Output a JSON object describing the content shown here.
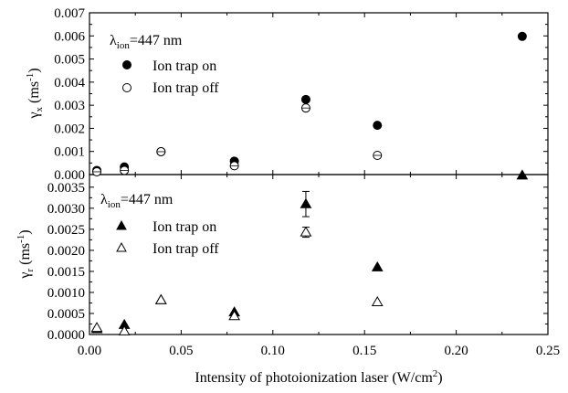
{
  "chart_data": [
    {
      "type": "scatter",
      "panel": "top",
      "ylabel": "γx (ms-1)",
      "ylabel_main": "γ",
      "ylabel_sub": "x",
      "ylabel_unit": " (ms",
      "ylabel_sup": "-1",
      "ylabel_close": ")",
      "ylim": [
        0,
        0.007
      ],
      "yticks": [
        0,
        0.001,
        0.002,
        0.003,
        0.004,
        0.005,
        0.006,
        0.007
      ],
      "ytick_labels": [
        "0.000",
        "0.001",
        "0.002",
        "0.003",
        "0.004",
        "0.005",
        "0.006",
        "0.007"
      ],
      "annotation": "λion=447 nm",
      "annotation_main": "λ",
      "annotation_sub": "ion",
      "annotation_rest": "=447 nm",
      "legend_position": "top-left",
      "series": [
        {
          "name": "Ion trap on",
          "marker": "filled-circle",
          "x": [
            0.004,
            0.019,
            0.039,
            0.079,
            0.118,
            0.157,
            0.236
          ],
          "y": [
            0.00018,
            0.00033,
            0.00099,
            0.00058,
            0.00325,
            0.00213,
            0.00598
          ]
        },
        {
          "name": "Ion trap off",
          "marker": "open-circle",
          "x": [
            0.004,
            0.019,
            0.039,
            0.079,
            0.118,
            0.157
          ],
          "y": [
            0.00012,
            0.00018,
            0.00099,
            0.00038,
            0.00288,
            0.00083
          ]
        }
      ]
    },
    {
      "type": "scatter",
      "panel": "bottom",
      "ylabel": "γr (ms-1)",
      "ylabel_main": "γ",
      "ylabel_sub": "r",
      "ylabel_unit": " (ms",
      "ylabel_sup": "-1",
      "ylabel_close": ")",
      "ylim": [
        0,
        0.0038
      ],
      "yticks": [
        0,
        0.0005,
        0.001,
        0.0015,
        0.002,
        0.0025,
        0.003,
        0.0035
      ],
      "ytick_labels": [
        "0.0000",
        "0.0005",
        "0.0010",
        "0.0015",
        "0.0020",
        "0.0025",
        "0.0030",
        "0.0035"
      ],
      "annotation": "λion=447 nm",
      "annotation_main": "λ",
      "annotation_sub": "ion",
      "annotation_rest": "=447 nm",
      "legend_position": "top-left",
      "series": [
        {
          "name": "Ion trap on",
          "marker": "filled-triangle",
          "x": [
            0.004,
            0.019,
            0.039,
            0.079,
            0.118,
            0.157,
            0.236
          ],
          "y": [
            0.00013,
            0.00023,
            0.00082,
            0.00053,
            0.0031,
            0.0016,
            0.00378
          ],
          "yerr": [
            0,
            0,
            0,
            0,
            0.0003,
            0,
            0
          ]
        },
        {
          "name": "Ion trap off",
          "marker": "open-triangle",
          "x": [
            0.004,
            0.019,
            0.039,
            0.079,
            0.118,
            0.157
          ],
          "y": [
            0.00016,
            8e-05,
            0.00082,
            0.00044,
            0.00243,
            0.00077
          ],
          "yerr": [
            0,
            0,
            0,
            0,
            0.00012,
            0
          ]
        }
      ]
    }
  ],
  "x_axis": {
    "xlim": [
      0,
      0.25
    ],
    "xticks": [
      0,
      0.05,
      0.1,
      0.15,
      0.2,
      0.25
    ],
    "xtick_labels": [
      "0.00",
      "0.05",
      "0.10",
      "0.15",
      "0.20",
      "0.25"
    ],
    "xlabel": "Intensity of photoionization laser (W/cm2)",
    "xlabel_main": "Intensity of photoionization laser (W/cm",
    "xlabel_sup": "2",
    "xlabel_close": ")"
  }
}
